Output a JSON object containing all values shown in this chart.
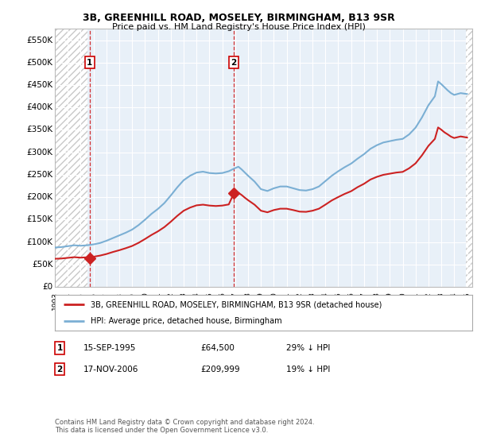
{
  "title1": "3B, GREENHILL ROAD, MOSELEY, BIRMINGHAM, B13 9SR",
  "title2": "Price paid vs. HM Land Registry's House Price Index (HPI)",
  "ylim": [
    0,
    575000
  ],
  "yticks": [
    0,
    50000,
    100000,
    150000,
    200000,
    250000,
    300000,
    350000,
    400000,
    450000,
    500000,
    550000
  ],
  "ytick_labels": [
    "£0",
    "£50K",
    "£100K",
    "£150K",
    "£200K",
    "£250K",
    "£300K",
    "£350K",
    "£400K",
    "£450K",
    "£500K",
    "£550K"
  ],
  "sale1_year": 1995,
  "sale1_month": 9,
  "sale1_price": 64500,
  "sale2_year": 2006,
  "sale2_month": 11,
  "sale2_price": 209999,
  "legend_line1": "3B, GREENHILL ROAD, MOSELEY, BIRMINGHAM, B13 9SR (detached house)",
  "legend_line2": "HPI: Average price, detached house, Birmingham",
  "table_row1": [
    "1",
    "15-SEP-1995",
    "£64,500",
    "29% ↓ HPI"
  ],
  "table_row2": [
    "2",
    "17-NOV-2006",
    "£209,999",
    "19% ↓ HPI"
  ],
  "footnote1": "Contains HM Land Registry data © Crown copyright and database right 2024.",
  "footnote2": "This data is licensed under the Open Government Licence v3.0.",
  "hpi_color": "#7bafd4",
  "price_color": "#cc2222",
  "hatch_color": "#c8c8c8",
  "bg_color": "#e8f0f8",
  "grid_color": "#ffffff",
  "box_edge_color": "#cc0000",
  "xlim_left": 1993.0,
  "xlim_right": 2025.4,
  "hpi_values": [
    [
      1993.0,
      88000
    ],
    [
      1993.5,
      89000
    ],
    [
      1994.0,
      91000
    ],
    [
      1994.5,
      93000
    ],
    [
      1995.0,
      92000
    ],
    [
      1995.5,
      93000
    ],
    [
      1996.0,
      95000
    ],
    [
      1996.5,
      98000
    ],
    [
      1997.0,
      103000
    ],
    [
      1997.5,
      109000
    ],
    [
      1998.0,
      115000
    ],
    [
      1998.5,
      121000
    ],
    [
      1999.0,
      128000
    ],
    [
      1999.5,
      138000
    ],
    [
      2000.0,
      150000
    ],
    [
      2000.5,
      163000
    ],
    [
      2001.0,
      174000
    ],
    [
      2001.5,
      187000
    ],
    [
      2002.0,
      204000
    ],
    [
      2002.5,
      222000
    ],
    [
      2003.0,
      238000
    ],
    [
      2003.5,
      248000
    ],
    [
      2004.0,
      255000
    ],
    [
      2004.5,
      257000
    ],
    [
      2005.0,
      254000
    ],
    [
      2005.5,
      253000
    ],
    [
      2006.0,
      254000
    ],
    [
      2006.5,
      258000
    ],
    [
      2007.0,
      265000
    ],
    [
      2007.25,
      268000
    ],
    [
      2007.5,
      262000
    ],
    [
      2007.75,
      255000
    ],
    [
      2008.0,
      248000
    ],
    [
      2008.5,
      235000
    ],
    [
      2009.0,
      218000
    ],
    [
      2009.5,
      214000
    ],
    [
      2010.0,
      220000
    ],
    [
      2010.5,
      224000
    ],
    [
      2011.0,
      224000
    ],
    [
      2011.5,
      220000
    ],
    [
      2012.0,
      216000
    ],
    [
      2012.5,
      215000
    ],
    [
      2013.0,
      218000
    ],
    [
      2013.5,
      224000
    ],
    [
      2014.0,
      236000
    ],
    [
      2014.5,
      248000
    ],
    [
      2015.0,
      258000
    ],
    [
      2015.5,
      267000
    ],
    [
      2016.0,
      275000
    ],
    [
      2016.5,
      286000
    ],
    [
      2017.0,
      296000
    ],
    [
      2017.5,
      308000
    ],
    [
      2018.0,
      316000
    ],
    [
      2018.5,
      322000
    ],
    [
      2019.0,
      325000
    ],
    [
      2019.5,
      328000
    ],
    [
      2020.0,
      330000
    ],
    [
      2020.5,
      340000
    ],
    [
      2021.0,
      355000
    ],
    [
      2021.5,
      378000
    ],
    [
      2022.0,
      405000
    ],
    [
      2022.5,
      425000
    ],
    [
      2022.75,
      458000
    ],
    [
      2023.0,
      452000
    ],
    [
      2023.25,
      445000
    ],
    [
      2023.5,
      438000
    ],
    [
      2023.75,
      432000
    ],
    [
      2024.0,
      428000
    ],
    [
      2024.5,
      432000
    ],
    [
      2025.0,
      430000
    ]
  ],
  "red_values": [
    [
      1993.0,
      63000
    ],
    [
      1993.5,
      63500
    ],
    [
      1994.0,
      65000
    ],
    [
      1994.5,
      66500
    ],
    [
      1995.0,
      65500
    ],
    [
      1995.5,
      66200
    ],
    [
      1996.0,
      67500
    ],
    [
      1996.5,
      70000
    ],
    [
      1997.0,
      73500
    ],
    [
      1997.5,
      78000
    ],
    [
      1998.0,
      82000
    ],
    [
      1998.5,
      86500
    ],
    [
      1999.0,
      91500
    ],
    [
      1999.5,
      98500
    ],
    [
      2000.0,
      107000
    ],
    [
      2000.5,
      116000
    ],
    [
      2001.0,
      124000
    ],
    [
      2001.5,
      133500
    ],
    [
      2002.0,
      145500
    ],
    [
      2002.5,
      158500
    ],
    [
      2003.0,
      170000
    ],
    [
      2003.5,
      177000
    ],
    [
      2004.0,
      182000
    ],
    [
      2004.5,
      183500
    ],
    [
      2005.0,
      181500
    ],
    [
      2005.5,
      180500
    ],
    [
      2006.0,
      181500
    ],
    [
      2006.5,
      184000
    ],
    [
      2006.916,
      209999
    ],
    [
      2007.25,
      210000
    ],
    [
      2007.5,
      205000
    ],
    [
      2007.75,
      199000
    ],
    [
      2008.0,
      193500
    ],
    [
      2008.5,
      183500
    ],
    [
      2009.0,
      170000
    ],
    [
      2009.5,
      166500
    ],
    [
      2010.0,
      171500
    ],
    [
      2010.5,
      174500
    ],
    [
      2011.0,
      174500
    ],
    [
      2011.5,
      171500
    ],
    [
      2012.0,
      168000
    ],
    [
      2012.5,
      167500
    ],
    [
      2013.0,
      170000
    ],
    [
      2013.5,
      174500
    ],
    [
      2014.0,
      183500
    ],
    [
      2014.5,
      193000
    ],
    [
      2015.0,
      200500
    ],
    [
      2015.5,
      207500
    ],
    [
      2016.0,
      213500
    ],
    [
      2016.5,
      222500
    ],
    [
      2017.0,
      230000
    ],
    [
      2017.5,
      239500
    ],
    [
      2018.0,
      245500
    ],
    [
      2018.5,
      250000
    ],
    [
      2019.0,
      252500
    ],
    [
      2019.5,
      255000
    ],
    [
      2020.0,
      256500
    ],
    [
      2020.5,
      264500
    ],
    [
      2021.0,
      275500
    ],
    [
      2021.5,
      293500
    ],
    [
      2022.0,
      314500
    ],
    [
      2022.5,
      330000
    ],
    [
      2022.75,
      355500
    ],
    [
      2023.0,
      350500
    ],
    [
      2023.25,
      344500
    ],
    [
      2023.5,
      340000
    ],
    [
      2023.75,
      335000
    ],
    [
      2024.0,
      332000
    ],
    [
      2024.5,
      335500
    ],
    [
      2025.0,
      333000
    ]
  ]
}
